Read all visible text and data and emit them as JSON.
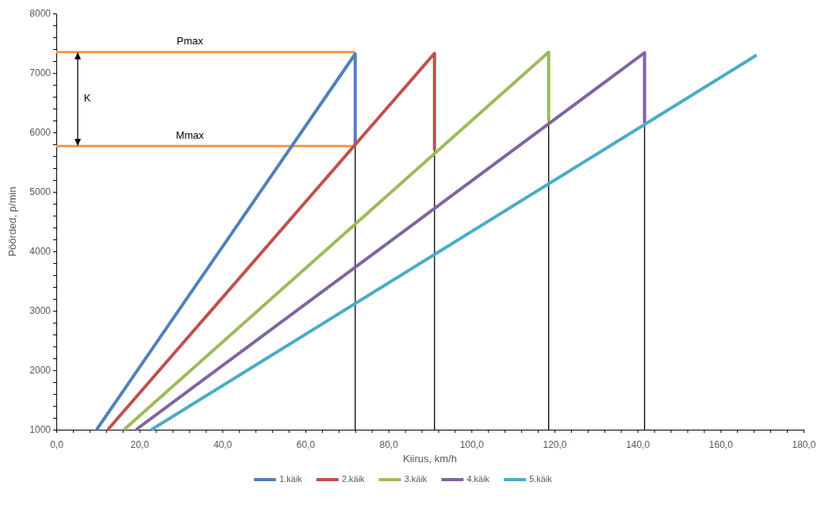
{
  "chart_data": {
    "type": "line",
    "xlabel": "Kiirus, km/h",
    "ylabel": "Pöörded, p/min",
    "xlim": [
      0,
      180
    ],
    "ylim": [
      1000,
      8000
    ],
    "xticks": [
      {
        "value": 0,
        "label": "0,0"
      },
      {
        "value": 4,
        "label": null
      },
      {
        "value": 8,
        "label": null
      },
      {
        "value": 12,
        "label": null
      },
      {
        "value": 16,
        "label": null
      },
      {
        "value": 20,
        "label": "20,0"
      },
      {
        "value": 24,
        "label": null
      },
      {
        "value": 28,
        "label": null
      },
      {
        "value": 32,
        "label": null
      },
      {
        "value": 36,
        "label": null
      },
      {
        "value": 40,
        "label": "40,0"
      },
      {
        "value": 44,
        "label": null
      },
      {
        "value": 48,
        "label": null
      },
      {
        "value": 52,
        "label": null
      },
      {
        "value": 56,
        "label": null
      },
      {
        "value": 60,
        "label": "60,0"
      },
      {
        "value": 64,
        "label": null
      },
      {
        "value": 68,
        "label": null
      },
      {
        "value": 72,
        "label": null
      },
      {
        "value": 76,
        "label": null
      },
      {
        "value": 80,
        "label": "80,0"
      },
      {
        "value": 84,
        "label": null
      },
      {
        "value": 88,
        "label": null
      },
      {
        "value": 92,
        "label": null
      },
      {
        "value": 96,
        "label": null
      },
      {
        "value": 100,
        "label": "100,0"
      },
      {
        "value": 104,
        "label": null
      },
      {
        "value": 108,
        "label": null
      },
      {
        "value": 112,
        "label": null
      },
      {
        "value": 116,
        "label": null
      },
      {
        "value": 120,
        "label": "120,0"
      },
      {
        "value": 124,
        "label": null
      },
      {
        "value": 128,
        "label": null
      },
      {
        "value": 132,
        "label": null
      },
      {
        "value": 136,
        "label": null
      },
      {
        "value": 140,
        "label": "140,0"
      },
      {
        "value": 144,
        "label": null
      },
      {
        "value": 148,
        "label": null
      },
      {
        "value": 152,
        "label": null
      },
      {
        "value": 156,
        "label": null
      },
      {
        "value": 160,
        "label": "160,0"
      },
      {
        "value": 164,
        "label": null
      },
      {
        "value": 168,
        "label": null
      },
      {
        "value": 172,
        "label": null
      },
      {
        "value": 176,
        "label": null
      },
      {
        "value": 180,
        "label": "180,0"
      }
    ],
    "yticks": [
      1000,
      {
        "value": 1200,
        "label": null
      },
      {
        "value": 1400,
        "label": null
      },
      {
        "value": 1600,
        "label": null
      },
      {
        "value": 1800,
        "label": null
      },
      2000,
      {
        "value": 2200,
        "label": null
      },
      {
        "value": 2400,
        "label": null
      },
      {
        "value": 2600,
        "label": null
      },
      {
        "value": 2800,
        "label": null
      },
      3000,
      {
        "value": 3200,
        "label": null
      },
      {
        "value": 3400,
        "label": null
      },
      {
        "value": 3600,
        "label": null
      },
      {
        "value": 3800,
        "label": null
      },
      4000,
      {
        "value": 4200,
        "label": null
      },
      {
        "value": 4400,
        "label": null
      },
      {
        "value": 4600,
        "label": null
      },
      {
        "value": 4800,
        "label": null
      },
      5000,
      {
        "value": 5200,
        "label": null
      },
      {
        "value": 5400,
        "label": null
      },
      {
        "value": 5600,
        "label": null
      },
      {
        "value": 5800,
        "label": null
      },
      6000,
      {
        "value": 6200,
        "label": null
      },
      {
        "value": 6400,
        "label": null
      },
      {
        "value": 6600,
        "label": null
      },
      {
        "value": 6800,
        "label": null
      },
      7000,
      {
        "value": 7200,
        "label": null
      },
      {
        "value": 7400,
        "label": null
      },
      {
        "value": 7600,
        "label": null
      },
      {
        "value": 7800,
        "label": null
      },
      8000
    ],
    "grid": false,
    "legend": "bottom",
    "marker": "none",
    "line_style": "solid",
    "series": [
      {
        "name": "1.käik",
        "color": "#4f81bd",
        "x": [
          9.7,
          72,
          72
        ],
        "values": [
          1000,
          7320,
          5770
        ]
      },
      {
        "name": "2.käik",
        "color": "#c0504d",
        "x": [
          12.4,
          91.1,
          91.1
        ],
        "values": [
          1000,
          7330,
          5700
        ]
      },
      {
        "name": "3.käik",
        "color": "#9bbb59",
        "x": [
          16.3,
          118.6,
          118.6
        ],
        "values": [
          1000,
          7350,
          6190
        ]
      },
      {
        "name": "4.käik",
        "color": "#8064a2",
        "x": [
          19.2,
          141.7,
          141.7
        ],
        "values": [
          1000,
          7340,
          6160
        ]
      },
      {
        "name": "5.käik",
        "color": "#4bacc6",
        "x": [
          22.9,
          168.7
        ],
        "values": [
          1000,
          7300
        ]
      },
      {
        "color": "#f79646",
        "x": [
          0,
          72
        ],
        "values": [
          7350,
          7350
        ]
      },
      {
        "color": "#f79646",
        "x": [
          0,
          72
        ],
        "values": [
          5770,
          5770
        ]
      },
      {
        "color": "#000000",
        "x": [
          72,
          72
        ],
        "values": [
          1000,
          5770
        ]
      },
      {
        "color": "#000000",
        "x": [
          91.1,
          91.1
        ],
        "values": [
          1000,
          5700
        ]
      },
      {
        "color": "#000000",
        "x": [
          118.6,
          118.6
        ],
        "values": [
          1000,
          6190
        ]
      },
      {
        "color": "#000000",
        "x": [
          141.7,
          141.7
        ],
        "values": [
          1000,
          6160
        ]
      }
    ],
    "annotations": [
      "Pmax",
      "Mmax",
      "K"
    ]
  }
}
